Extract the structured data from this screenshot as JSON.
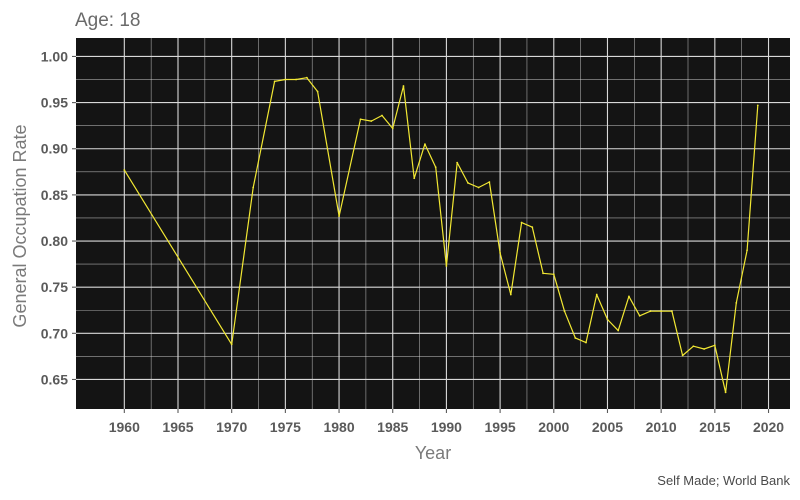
{
  "chart_data": {
    "type": "line",
    "title": "Age: 18",
    "xlabel": "Year",
    "ylabel": "General Occupation Rate",
    "caption": "Self Made; World Bank",
    "xlim": [
      1955.5,
      2022
    ],
    "ylim": [
      0.618,
      1.02
    ],
    "x_ticks": [
      1960,
      1965,
      1970,
      1975,
      1980,
      1985,
      1990,
      1995,
      2000,
      2005,
      2010,
      2015,
      2020
    ],
    "x_tick_labels": [
      "1960",
      "1965",
      "1970",
      "1975",
      "1980",
      "1985",
      "1990",
      "1995",
      "2000",
      "2005",
      "2010",
      "2015",
      "2020"
    ],
    "y_ticks": [
      0.65,
      0.7,
      0.75,
      0.8,
      0.85,
      0.9,
      0.95,
      1.0
    ],
    "y_tick_labels": [
      "0.65",
      "0.70",
      "0.75",
      "0.80",
      "0.85",
      "0.90",
      "0.95",
      "1.00"
    ],
    "grid": true,
    "background": "#141414",
    "grid_color": "#d9d9d9",
    "series": [
      {
        "color": "#f2e833",
        "x": [
          1960,
          1970,
          1972,
          1974,
          1975,
          1976,
          1977,
          1978,
          1980,
          1982,
          1983,
          1984,
          1985,
          1986,
          1987,
          1988,
          1989,
          1990,
          1991,
          1992,
          1993,
          1994,
          1995,
          1996,
          1997,
          1998,
          1999,
          2000,
          2001,
          2002,
          2003,
          2004,
          2005,
          2006,
          2007,
          2008,
          2009,
          2010,
          2011,
          2012,
          2013,
          2014,
          2015,
          2016,
          2017,
          2018,
          2019
        ],
        "y": [
          0.877,
          0.688,
          0.858,
          0.973,
          0.975,
          0.975,
          0.977,
          0.962,
          0.827,
          0.932,
          0.93,
          0.936,
          0.922,
          0.968,
          0.868,
          0.905,
          0.88,
          0.773,
          0.885,
          0.863,
          0.858,
          0.864,
          0.787,
          0.742,
          0.82,
          0.815,
          0.765,
          0.764,
          0.724,
          0.695,
          0.69,
          0.742,
          0.715,
          0.703,
          0.74,
          0.719,
          0.724,
          0.724,
          0.724,
          0.676,
          0.686,
          0.683,
          0.687,
          0.636,
          0.733,
          0.79,
          0.947
        ]
      }
    ]
  }
}
